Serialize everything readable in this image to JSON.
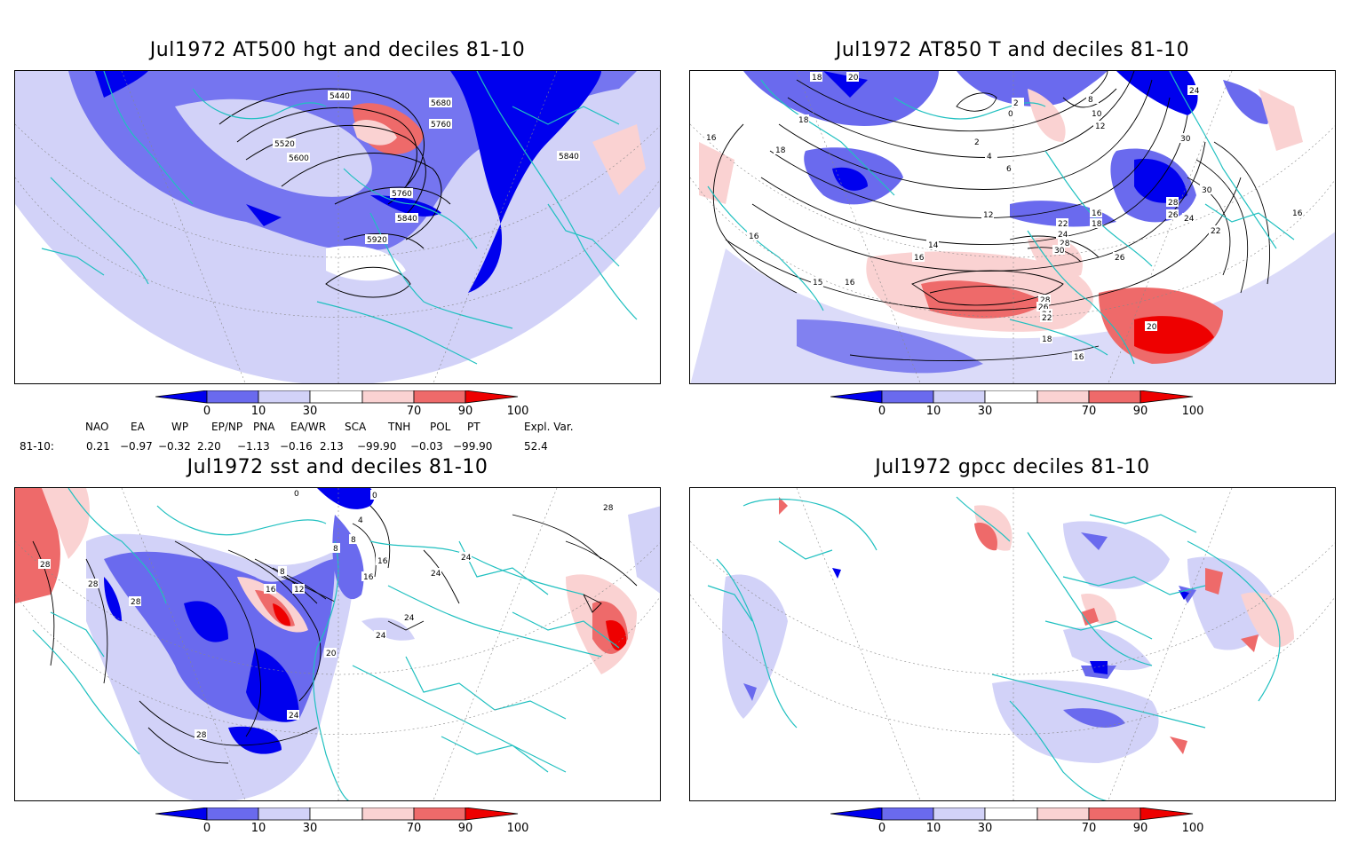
{
  "panels": [
    {
      "title": "Jul1972 AT500 hgt and deciles 81-10",
      "contour_labels": [
        "5440",
        "5680",
        "5760",
        "5520",
        "5600",
        "5840",
        "5760",
        "5840",
        "5920"
      ]
    },
    {
      "title": "Jul1972 AT850 T and deciles 81-10",
      "contour_labels": [
        "18",
        "20",
        "18",
        "16",
        "18",
        "16",
        "15",
        "16",
        "14",
        "16",
        "12",
        "6",
        "4",
        "2",
        "0",
        "2",
        "8",
        "10",
        "12",
        "24",
        "30",
        "30",
        "28",
        "26",
        "24",
        "22",
        "16",
        "18",
        "22",
        "24",
        "28",
        "30",
        "26",
        "28",
        "26",
        "24",
        "22",
        "20",
        "18",
        "16",
        "16"
      ]
    },
    {
      "title": "Jul1972 sst and deciles 81-10",
      "contour_labels": [
        "28",
        "28",
        "28",
        "0",
        "0",
        "4",
        "8",
        "8",
        "16",
        "12",
        "16",
        "8",
        "16",
        "20",
        "24",
        "24",
        "24",
        "24",
        "24",
        "28",
        "28"
      ]
    },
    {
      "title": "Jul1972 gpcc deciles 81-10",
      "contour_labels": []
    }
  ],
  "colorbar": {
    "ticks": [
      "0",
      "10",
      "30",
      "70",
      "90",
      "100"
    ],
    "colors": [
      "#0000ee",
      "#6a6aee",
      "#d2d2f8",
      "#ffffff",
      "#fad2d2",
      "#ee6a6a",
      "#ee0000"
    ]
  },
  "indices": {
    "headers": [
      "NAO",
      "EA",
      "WP",
      "EP/NP",
      "PNA",
      "EA/WR",
      "SCA",
      "TNH",
      "POL",
      "PT",
      "Expl. Var."
    ],
    "row_label": "81-10:",
    "values": [
      "0.21",
      "−0.97",
      "−0.32",
      "2.20",
      "−1.13",
      "−0.16",
      "2.13",
      "−99.90",
      "−0.03",
      "−99.90",
      "52.4"
    ]
  }
}
